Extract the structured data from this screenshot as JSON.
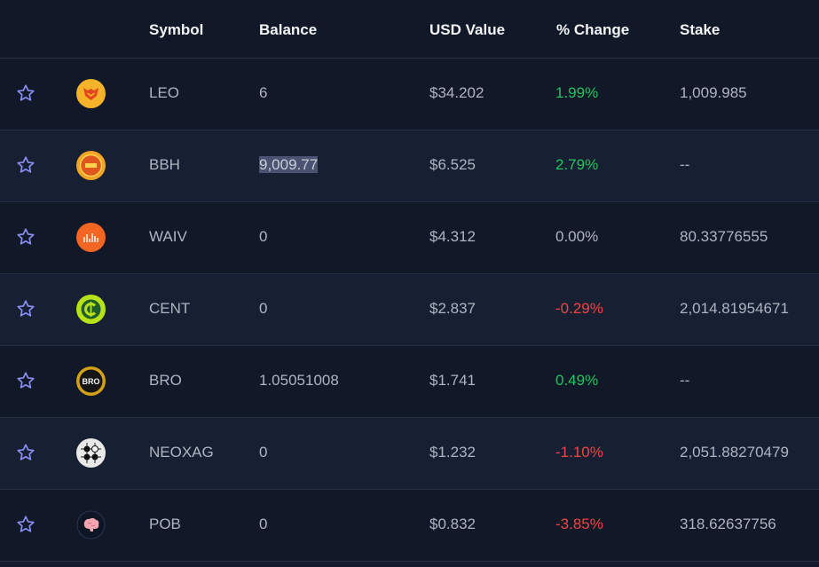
{
  "header": {
    "symbol": "Symbol",
    "balance": "Balance",
    "usd_value": "USD Value",
    "change": "% Change",
    "stake": "Stake"
  },
  "colors": {
    "positive": "#22c55e",
    "negative": "#ef4444",
    "neutral": "#aeb4c0",
    "star": "#8b8ff5"
  },
  "rows": [
    {
      "icon": "leo-logo-icon",
      "symbol": "LEO",
      "balance": "6",
      "usd_value": "$34.202",
      "change": "1.99%",
      "trend": "positive",
      "stake": "1,009.985"
    },
    {
      "icon": "bbh-logo-icon",
      "symbol": "BBH",
      "balance": "9,009.77",
      "usd_value": "$6.525",
      "change": "2.79%",
      "trend": "positive",
      "stake": "--"
    },
    {
      "icon": "waiv-logo-icon",
      "symbol": "WAIV",
      "balance": "0",
      "usd_value": "$4.312",
      "change": "0.00%",
      "trend": "neutral",
      "stake": "80.33776555"
    },
    {
      "icon": "cent-logo-icon",
      "symbol": "CENT",
      "balance": "0",
      "usd_value": "$2.837",
      "change": "-0.29%",
      "trend": "negative",
      "stake": "2,014.81954671"
    },
    {
      "icon": "bro-logo-icon",
      "symbol": "BRO",
      "balance": "1.05051008",
      "usd_value": "$1.741",
      "change": "0.49%",
      "trend": "positive",
      "stake": "--"
    },
    {
      "icon": "neoxag-logo-icon",
      "symbol": "NEOXAG",
      "balance": "0",
      "usd_value": "$1.232",
      "change": "-1.10%",
      "trend": "negative",
      "stake": "2,051.88270479"
    },
    {
      "icon": "pob-logo-icon",
      "symbol": "POB",
      "balance": "0",
      "usd_value": "$0.832",
      "change": "-3.85%",
      "trend": "negative",
      "stake": "318.62637756"
    }
  ],
  "logo_text": {
    "bro": "BRO"
  }
}
